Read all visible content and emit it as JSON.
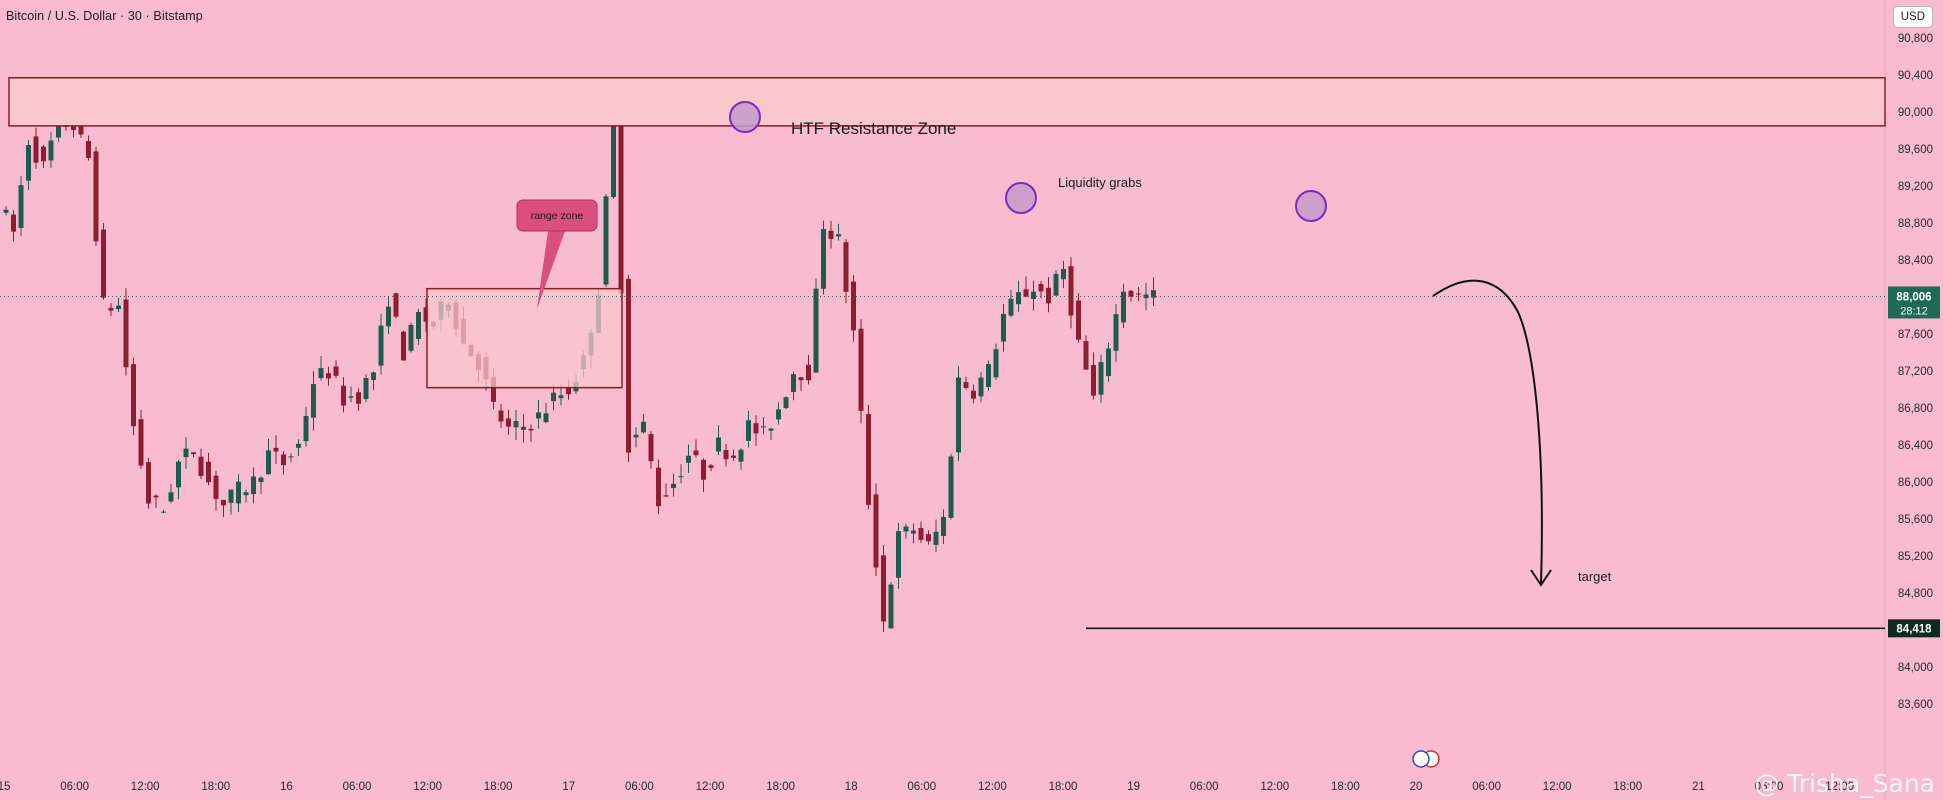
{
  "header": {
    "title": "Bitcoin / U.S. Dollar · 30 · Bitstamp",
    "currency": "USD"
  },
  "watermark": "@ Trisha_Sana",
  "colors": {
    "background": "#f8bbd0",
    "bull": "#1f5b4c",
    "bear": "#8c1d33",
    "zone_fill": "#f9c7cc",
    "zone_border": "#8b1a2c",
    "circle": "#7b2cbf",
    "last_price_tag": "#1d6a55",
    "low_tag": "#0e2a22"
  },
  "annotations": {
    "resistance_label": "HTF Resistance Zone",
    "liquidity_label": "Liquidity grabs",
    "range_label": "range zone",
    "target_label": "target",
    "last_price": "88,006",
    "countdown": "28:12",
    "low_price": "84,418"
  },
  "chart_data": {
    "type": "candlestick",
    "title": "Bitcoin / U.S. Dollar · 30 · Bitstamp",
    "y_ticks": [
      83600,
      84000,
      84400,
      84800,
      85200,
      85600,
      86000,
      86400,
      86800,
      87200,
      87600,
      88000,
      88400,
      88800,
      89200,
      89600,
      90000,
      90400,
      90800
    ],
    "x_ticks": [
      "15",
      "06:00",
      "12:00",
      "18:00",
      "16",
      "06:00",
      "12:00",
      "18:00",
      "17",
      "06:00",
      "12:00",
      "18:00",
      "18",
      "06:00",
      "12:00",
      "18:00",
      "19",
      "06:00",
      "12:00",
      "18:00",
      "20",
      "06:00",
      "12:00",
      "18:00",
      "21",
      "06:00",
      "12:00"
    ],
    "ylim": [
      83200,
      91200
    ],
    "last_price": 88006,
    "zones": [
      {
        "label": "HTF Resistance Zone",
        "low": 89850,
        "high": 90370
      },
      {
        "label": "range zone",
        "low": 87020,
        "high": 88090
      }
    ],
    "horizontal_levels": [
      {
        "value": 84418
      }
    ],
    "key_points": [
      {
        "label": "Liquidity grabs",
        "price": 89200
      },
      {
        "label": "target",
        "price": 85200
      }
    ],
    "path": [
      89000,
      88700,
      89700,
      89400,
      89900,
      89850,
      89500,
      87900,
      87900,
      86600,
      85800,
      85700,
      86200,
      86350,
      86000,
      85750,
      85900,
      86000,
      86300,
      86200,
      86400,
      87100,
      87200,
      86900,
      86950,
      87200,
      88000,
      87400,
      87800,
      87700,
      88000,
      87500,
      87300,
      86800,
      86550,
      86600,
      86700,
      86900,
      87000,
      87300,
      88100,
      89900,
      86400,
      86600,
      85800,
      86000,
      86300,
      86100,
      86400,
      86300,
      86600,
      86500,
      86800,
      87200,
      87200,
      88800,
      88600,
      87600,
      85800,
      84500,
      85400,
      85500,
      85300,
      85600,
      87100,
      87000,
      87200,
      87800,
      88000,
      88100,
      88000,
      88300,
      87500,
      86900,
      87500,
      88100,
      88000,
      88000
    ]
  }
}
